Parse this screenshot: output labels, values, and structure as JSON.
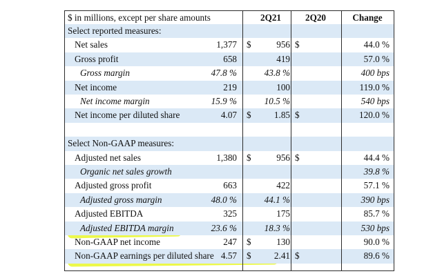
{
  "header": {
    "label": "$ in millions, except per share amounts",
    "col1": "2Q21",
    "col2": "2Q20",
    "col3": "Change"
  },
  "rows": [
    {
      "label": "Select reported measures:",
      "level": 0,
      "c1cur": "",
      "c1": "",
      "c2cur": "",
      "c2": "",
      "c3": "",
      "ital": false
    },
    {
      "label": "Net sales",
      "level": 1,
      "c1cur": "$",
      "c1": "1,377",
      "c2cur": "$",
      "c2": "956",
      "c3": "44.0 %",
      "ital": false
    },
    {
      "label": "Gross profit",
      "level": 1,
      "c1cur": "",
      "c1": "658",
      "c2cur": "",
      "c2": "419",
      "c3": "57.0 %",
      "ital": false
    },
    {
      "label": "Gross margin",
      "level": 2,
      "c1cur": "",
      "c1": "47.8 %",
      "c2cur": "",
      "c2": "43.8 %",
      "c3": "400 bps",
      "ital": true
    },
    {
      "label": "Net income",
      "level": 1,
      "c1cur": "",
      "c1": "219",
      "c2cur": "",
      "c2": "100",
      "c3": "119.0 %",
      "ital": false
    },
    {
      "label": "Net income margin",
      "level": 2,
      "c1cur": "",
      "c1": "15.9 %",
      "c2cur": "",
      "c2": "10.5 %",
      "c3": "540 bps",
      "ital": true
    },
    {
      "label": "Net income per diluted share",
      "level": 1,
      "c1cur": "$",
      "c1": "4.07",
      "c2cur": "$",
      "c2": "1.85",
      "c3": "120.0 %",
      "ital": false
    },
    {
      "label": "",
      "level": 0,
      "c1cur": "",
      "c1": "",
      "c2cur": "",
      "c2": "",
      "c3": "",
      "ital": false
    },
    {
      "label": "Select Non-GAAP measures:",
      "level": 0,
      "c1cur": "",
      "c1": "",
      "c2cur": "",
      "c2": "",
      "c3": "",
      "ital": false
    },
    {
      "label": "Adjusted net sales",
      "level": 1,
      "c1cur": "$",
      "c1": "1,380",
      "c2cur": "$",
      "c2": "956",
      "c3": "44.4 %",
      "ital": false
    },
    {
      "label": "Organic net sales growth",
      "level": 2,
      "c1cur": "",
      "c1": "",
      "c2cur": "",
      "c2": "",
      "c3": "39.8 %",
      "ital": true
    },
    {
      "label": "Adjusted gross profit",
      "level": 1,
      "c1cur": "",
      "c1": "663",
      "c2cur": "",
      "c2": "422",
      "c3": "57.1 %",
      "ital": false
    },
    {
      "label": "Adjusted gross margin",
      "level": 2,
      "c1cur": "",
      "c1": "48.0 %",
      "c2cur": "",
      "c2": "44.1 %",
      "c3": "390 bps",
      "ital": true
    },
    {
      "label": "Adjusted EBITDA",
      "level": 1,
      "c1cur": "",
      "c1": "325",
      "c2cur": "",
      "c2": "175",
      "c3": "85.7 %",
      "ital": false
    },
    {
      "label": "Adjusted EBITDA margin",
      "level": 2,
      "c1cur": "",
      "c1": "23.6 %",
      "c2cur": "",
      "c2": "18.3 %",
      "c3": "530 bps",
      "ital": true
    },
    {
      "label": "Non-GAAP net income",
      "level": 1,
      "c1cur": "$",
      "c1": "247",
      "c2cur": "",
      "c2": "130",
      "c3": "90.0 %",
      "ital": false
    },
    {
      "label": "Non-GAAP earnings per diluted share",
      "level": 1,
      "c1cur": "$",
      "c1": "4.57",
      "c2cur": "$",
      "c2": "2.41",
      "c3": "89.6 %",
      "ital": false
    }
  ],
  "colors": {
    "row_shade": "#dbe9f6",
    "highlight": "#e9f72a"
  }
}
